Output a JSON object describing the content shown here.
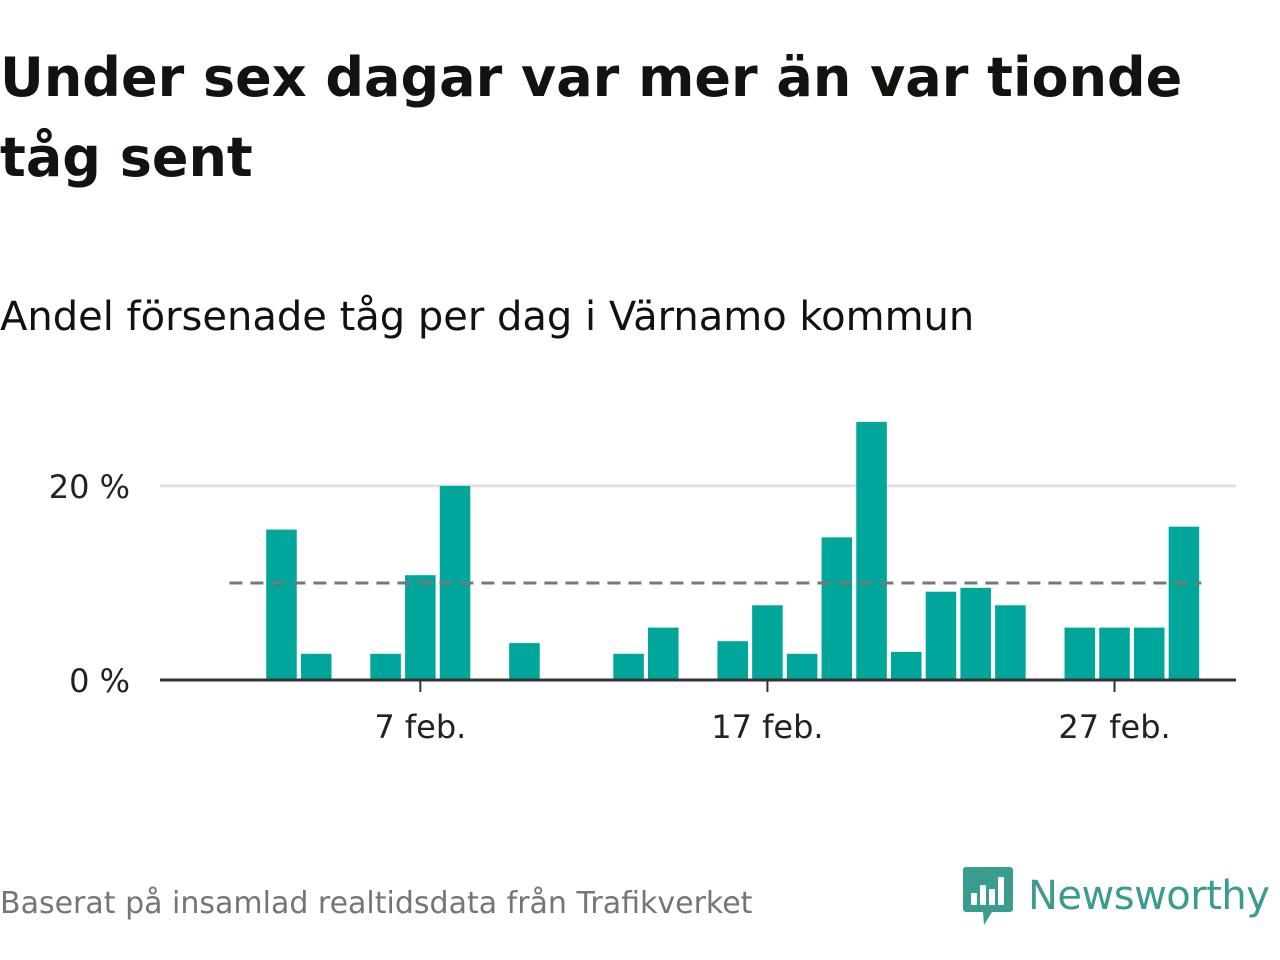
{
  "header": {
    "title": "Under sex dagar var mer än var tionde tåg sent",
    "subtitle": "Andel försenade tåg per dag i Värnamo kommun"
  },
  "footer": {
    "source": "Baserat på insamlad realtidsdata från Trafikverket",
    "brand": "Newsworthy",
    "brand_icon": "newsworthy-chart-bubble-icon"
  },
  "colors": {
    "bar": "#00a699",
    "reference_line": "#777777",
    "grid": "#e0e0e0",
    "axis": "#333333",
    "brand": "#3a9b8f"
  },
  "chart_data": {
    "type": "bar",
    "title": "Andel försenade tåg per dag i Värnamo kommun",
    "xlabel": "",
    "ylabel": "",
    "ylim": [
      0,
      27
    ],
    "y_ticks": [
      {
        "value": 0,
        "label": "0 %"
      },
      {
        "value": 20,
        "label": "20 %"
      }
    ],
    "x_ticks": [
      {
        "value": 7,
        "label": "7 feb."
      },
      {
        "value": 17,
        "label": "17 feb."
      },
      {
        "value": 27,
        "label": "27 feb."
      }
    ],
    "x_domain": [
      -0.5,
      30.5
    ],
    "reference_line": {
      "value": 10,
      "style": "dashed"
    },
    "grid": "horizontal",
    "legend": "none",
    "days": [
      3,
      4,
      6,
      7,
      8,
      10,
      13,
      14,
      16,
      17,
      18,
      19,
      20,
      21,
      22,
      23,
      24,
      26,
      27,
      28,
      29
    ],
    "values": [
      15.5,
      2.7,
      2.7,
      10.8,
      20.0,
      3.8,
      2.7,
      5.4,
      4.0,
      7.7,
      2.7,
      14.7,
      26.6,
      2.9,
      9.1,
      9.5,
      7.7,
      5.4,
      5.4,
      5.4,
      15.8
    ]
  }
}
